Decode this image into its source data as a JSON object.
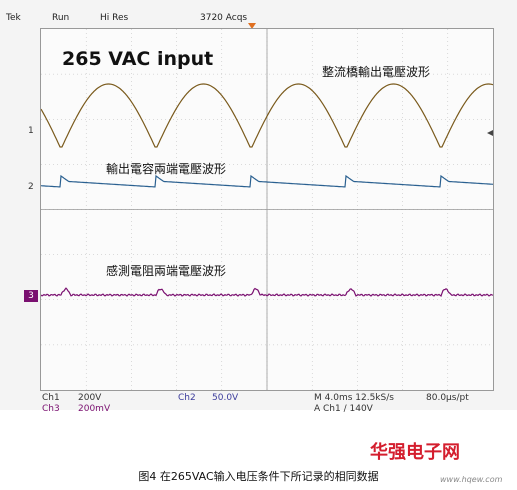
{
  "status": {
    "brand": "Tek",
    "run_state": "Run",
    "mode": "Hi Res",
    "acqs": "3720 Acqs"
  },
  "labels": {
    "title": "265 VAC input",
    "rectifier": "整流橋輸出電壓波形",
    "capacitor": "輸出電容兩端電壓波形",
    "resistor": "感測電阻兩端電壓波形"
  },
  "markers": {
    "ch1": "1",
    "ch2": "2",
    "ch3": "3"
  },
  "readout": {
    "ch1": "Ch1",
    "ch1_scale": "200V",
    "ch2": "Ch2",
    "ch2_scale": "50.0V",
    "ch3": "Ch3",
    "ch3_scale": "200mV",
    "timebase": "M 4.0ms 12.5kS/s",
    "sample": "80.0µs/pt",
    "trigger": "A  Ch1  ∕  140V"
  },
  "caption": "图4 在265VAC输入电压条件下所记录的相同数据",
  "watermark": {
    "brand": "华强电子网",
    "site": "www.hqew.com"
  },
  "colors": {
    "ch1": "#7a5a1c",
    "ch2": "#2a6090",
    "ch3": "#7a1070",
    "grid": "#b8b8b8"
  }
}
